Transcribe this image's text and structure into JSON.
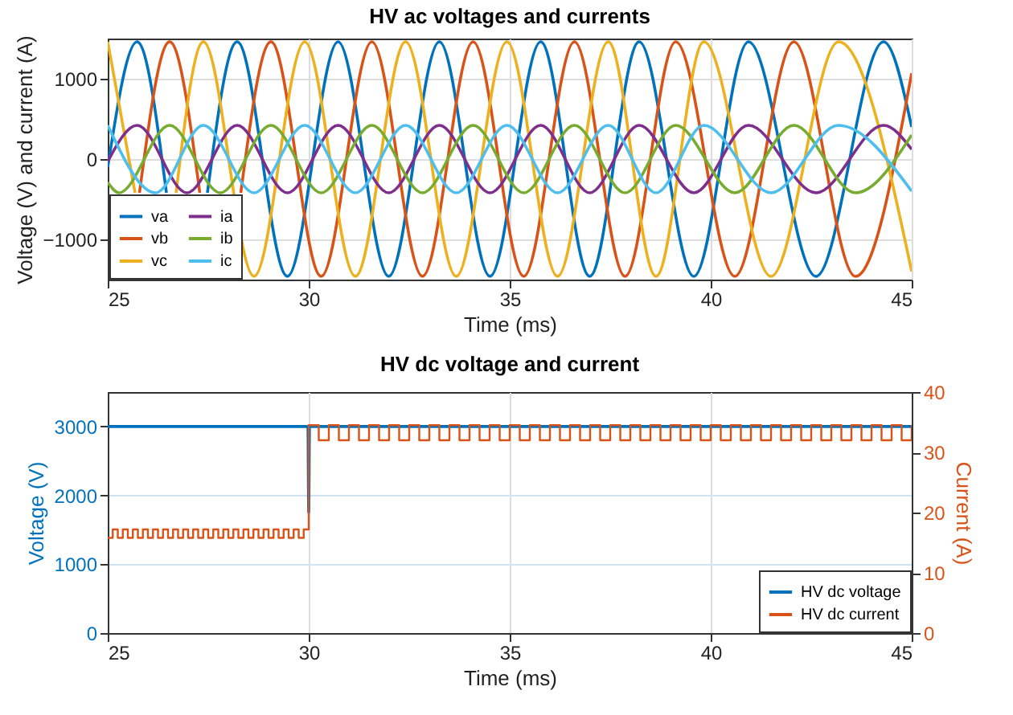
{
  "chart_data": [
    {
      "type": "line",
      "title": "HV ac  voltages and currents",
      "xlabel": "Time (ms)",
      "ylabel": "Voltage (V) and current (A)",
      "xlim": [
        25,
        45
      ],
      "xticks": [
        25,
        30,
        35,
        40,
        45
      ],
      "ylim": [
        -1500,
        1500
      ],
      "yticks": [
        -1000,
        0,
        1000
      ],
      "grid": true,
      "legend": "bottom left",
      "series": [
        {
          "name": "va",
          "color": "#0072bd",
          "x": [
            25,
            25.73,
            26.46,
            26.97,
            27.48,
            28.22,
            29.47,
            30.73,
            31.99,
            33.25,
            34.51,
            35.77,
            36.99,
            38.22,
            39.58,
            40.94,
            42.62,
            44.3,
            45
          ],
          "values": [
            -100,
            1460,
            -420,
            null,
            -420,
            1460,
            -1460,
            1460,
            -1460,
            1460,
            -1460,
            1460,
            -1460,
            1460,
            -1460,
            1460,
            -1460,
            1460,
            400
          ]
        },
        {
          "name": "vb",
          "color": "#d95319",
          "x": [
            25.79,
            26.54,
            27.29,
            27.8,
            28.31,
            29.06,
            30.31,
            31.57,
            32.83,
            34.09,
            35.35,
            36.61,
            37.87,
            39.13,
            40.6,
            42.07,
            43.6,
            45
          ],
          "values": [
            -420,
            1460,
            -420,
            null,
            -420,
            1460,
            -1460,
            1460,
            -1460,
            1460,
            -1460,
            1460,
            -1460,
            1460,
            -1460,
            1460,
            -1460,
            1070
          ]
        },
        {
          "name": "vc",
          "color": "#edb120",
          "x": [
            25,
            25.68,
            26.19,
            26.7,
            27.38,
            28.64,
            29.9,
            31.16,
            32.41,
            33.67,
            34.93,
            36.19,
            37.45,
            38.64,
            39.83,
            41.5,
            43.18,
            45
          ],
          "values": [
            1460,
            -420,
            null,
            -420,
            1460,
            -1460,
            1460,
            -1460,
            1460,
            -1460,
            1460,
            -1460,
            1460,
            -1460,
            1460,
            -1460,
            1460,
            -1400
          ]
        },
        {
          "name": "ia",
          "color": "#7e2f8e",
          "x": [
            25,
            25.73,
            26.97,
            28.22,
            29.47,
            30.73,
            31.99,
            33.25,
            34.51,
            35.77,
            36.99,
            38.22,
            39.58,
            40.94,
            42.62,
            44.3,
            45
          ],
          "values": [
            -30,
            420,
            -420,
            420,
            -420,
            420,
            -420,
            420,
            -420,
            420,
            -420,
            420,
            -420,
            420,
            -420,
            420,
            120
          ]
        },
        {
          "name": "ib",
          "color": "#77ac30",
          "x": [
            25,
            25.28,
            26.54,
            27.8,
            29.06,
            30.31,
            31.57,
            32.83,
            34.09,
            35.35,
            36.61,
            37.87,
            39.13,
            40.6,
            42.07,
            43.6,
            45
          ],
          "values": [
            -290,
            -420,
            420,
            -420,
            420,
            -420,
            420,
            -420,
            420,
            -420,
            420,
            -420,
            420,
            -420,
            420,
            -420,
            300
          ]
        },
        {
          "name": "ic",
          "color": "#4dbeee",
          "x": [
            25,
            26.19,
            27.38,
            28.64,
            29.9,
            31.16,
            32.41,
            33.67,
            34.93,
            36.19,
            37.45,
            38.64,
            39.83,
            41.5,
            43.18,
            45
          ],
          "values": [
            420,
            -420,
            420,
            -420,
            420,
            -420,
            420,
            -420,
            420,
            -420,
            420,
            -420,
            420,
            -420,
            420,
            -400
          ]
        }
      ]
    },
    {
      "type": "line",
      "title": "HV dc voltage and current",
      "xlabel": "Time (ms)",
      "ylabel": "Voltage (V)",
      "y2label": "Current (A)",
      "xlim": [
        25,
        45
      ],
      "xticks": [
        25,
        30,
        35,
        40,
        45
      ],
      "ylim": [
        0,
        3500
      ],
      "yticks": [
        0,
        1000,
        2000,
        3000
      ],
      "y2lim": [
        0,
        40
      ],
      "y2ticks": [
        0,
        10,
        20,
        30,
        40
      ],
      "grid": true,
      "legend": "bottom right",
      "series": [
        {
          "name": "HV dc voltage",
          "color": "#0072bd",
          "x": [
            25,
            29.98,
            30,
            30.02,
            45
          ],
          "values": [
            3000,
            3000,
            1750,
            3000,
            3000
          ]
        },
        {
          "name": "HV dc current",
          "color": "#d95319",
          "type": "step",
          "axis": "y2",
          "x": [
            25,
            25.125,
            25.25,
            25.375,
            25.5,
            25.625,
            25.75,
            25.875,
            26,
            26.125,
            26.25,
            26.375,
            26.5,
            26.625,
            26.75,
            26.875,
            27,
            27.125,
            27.25,
            27.375,
            27.5,
            27.625,
            27.75,
            27.875,
            28,
            28.125,
            28.25,
            28.375,
            28.5,
            28.625,
            28.75,
            28.875,
            29,
            29.125,
            29.25,
            29.375,
            29.5,
            29.625,
            29.75,
            29.875,
            30,
            30.25,
            30.5,
            30.75,
            31,
            31.25,
            31.5,
            31.75,
            32,
            32.25,
            32.5,
            32.75,
            33,
            33.25,
            33.5,
            33.75,
            34,
            34.25,
            34.5,
            34.75,
            35,
            35.25,
            35.5,
            35.75,
            36,
            36.25,
            36.5,
            36.75,
            37,
            37.25,
            37.5,
            37.75,
            38,
            38.25,
            38.5,
            38.75,
            39,
            39.25,
            39.5,
            39.75,
            40,
            40.25,
            40.5,
            40.75,
            41,
            41.25,
            41.5,
            41.75,
            42,
            42.25,
            42.5,
            42.75,
            43,
            43.25,
            43.5,
            43.75,
            44,
            44.25,
            44.5,
            44.75,
            45
          ],
          "values": [
            15.8,
            17.2,
            15.8,
            17.2,
            15.8,
            17.2,
            15.8,
            17.2,
            15.8,
            17.2,
            15.8,
            17.2,
            15.8,
            17.2,
            15.8,
            17.2,
            15.8,
            17.2,
            15.8,
            17.2,
            15.8,
            17.2,
            15.8,
            17.2,
            15.8,
            17.2,
            15.8,
            17.2,
            15.8,
            17.2,
            15.8,
            17.2,
            15.8,
            17.2,
            15.8,
            17.2,
            15.8,
            17.2,
            15.8,
            17.2,
            34.5,
            32,
            34.5,
            32,
            34.5,
            32,
            34.5,
            32,
            34.5,
            32,
            34.5,
            32,
            34.5,
            32,
            34.5,
            32,
            34.5,
            32,
            34.5,
            32,
            34.5,
            32,
            34.5,
            32,
            34.5,
            32,
            34.5,
            32,
            34.5,
            32,
            34.5,
            32,
            34.5,
            32,
            34.5,
            32,
            34.5,
            32,
            34.5,
            32,
            34.5,
            32,
            34.5,
            32,
            34.5,
            32,
            34.5,
            32,
            34.5,
            32,
            34.5,
            32,
            34.5,
            32,
            34.5,
            32,
            34.5,
            32,
            34.5,
            32,
            34.5
          ]
        }
      ]
    }
  ]
}
